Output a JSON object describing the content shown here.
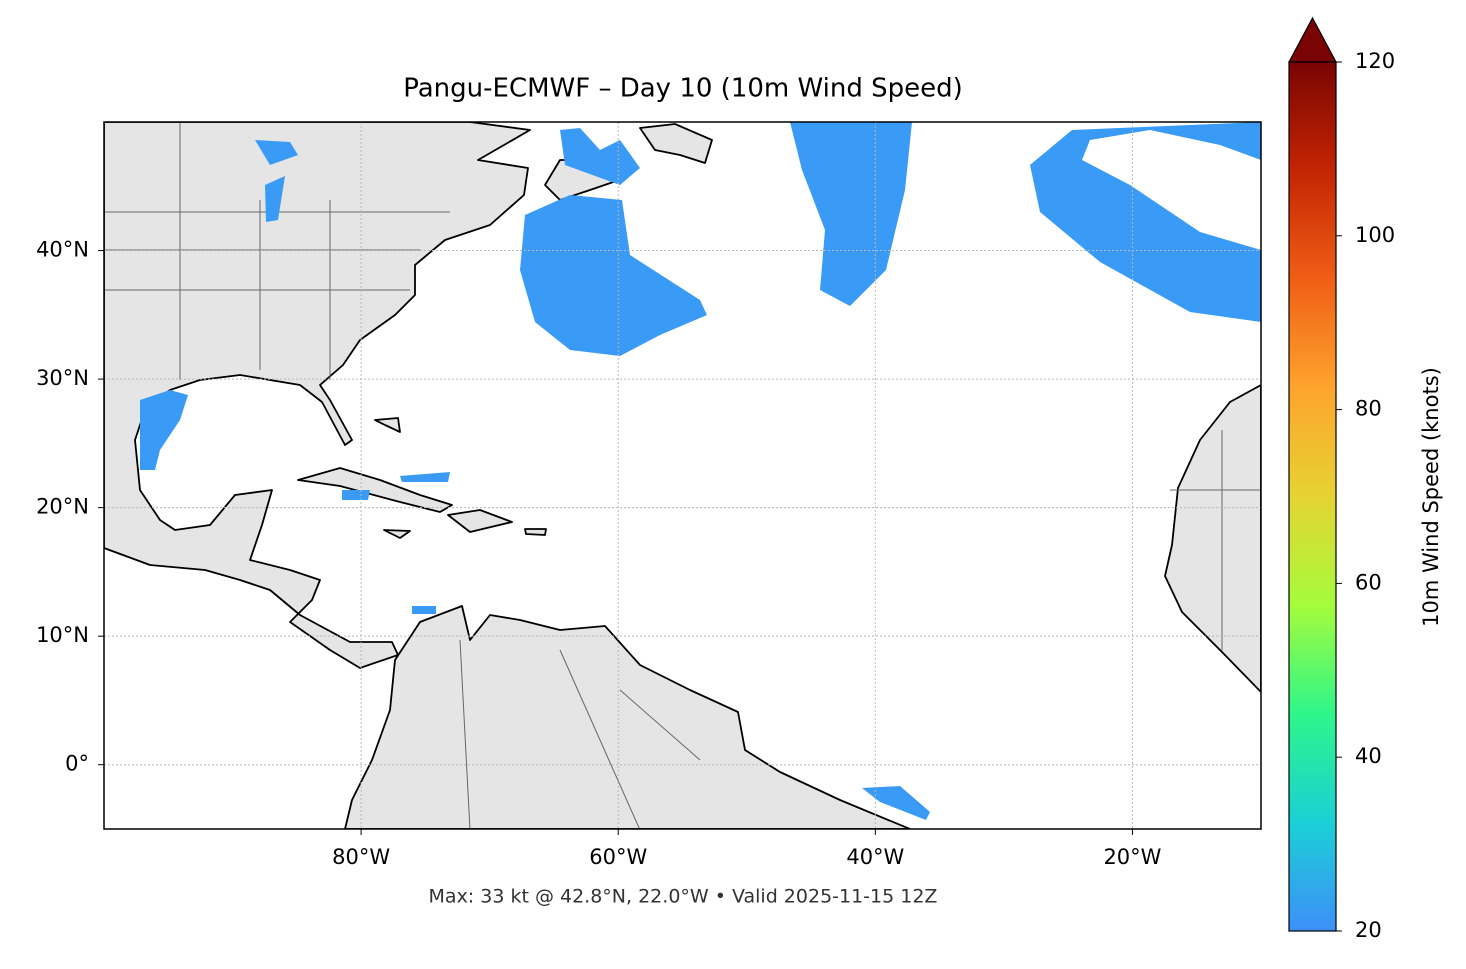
{
  "map": {
    "title": "Pangu-ECMWF – Day 10 (10m Wind Speed)",
    "footer": "Max: 33 kt @ 42.8°N, 22.0°W • Valid 2025-11-15 12Z",
    "xlim": [
      -100,
      -10
    ],
    "ylim": [
      -5,
      50
    ],
    "xticks": [
      {
        "value": -80,
        "label": "80°W"
      },
      {
        "value": -60,
        "label": "60°W"
      },
      {
        "value": -40,
        "label": "40°W"
      },
      {
        "value": -20,
        "label": "20°W"
      }
    ],
    "yticks": [
      {
        "value": 0,
        "label": "0°"
      },
      {
        "value": 10,
        "label": "10°N"
      },
      {
        "value": 20,
        "label": "20°N"
      },
      {
        "value": 30,
        "label": "30°N"
      },
      {
        "value": 40,
        "label": "40°N"
      }
    ],
    "grid": true,
    "colorbar": {
      "label": "10m Wind Speed (knots)",
      "lim": [
        20,
        120
      ],
      "ticks": [
        20,
        40,
        60,
        80,
        100,
        120
      ],
      "colors": [
        "#3e8ff9",
        "#1ad0d5",
        "#2ef68a",
        "#a5fc3b",
        "#e6d333",
        "#fea42d",
        "#f05e16",
        "#c42503",
        "#7a0403"
      ]
    }
  }
}
